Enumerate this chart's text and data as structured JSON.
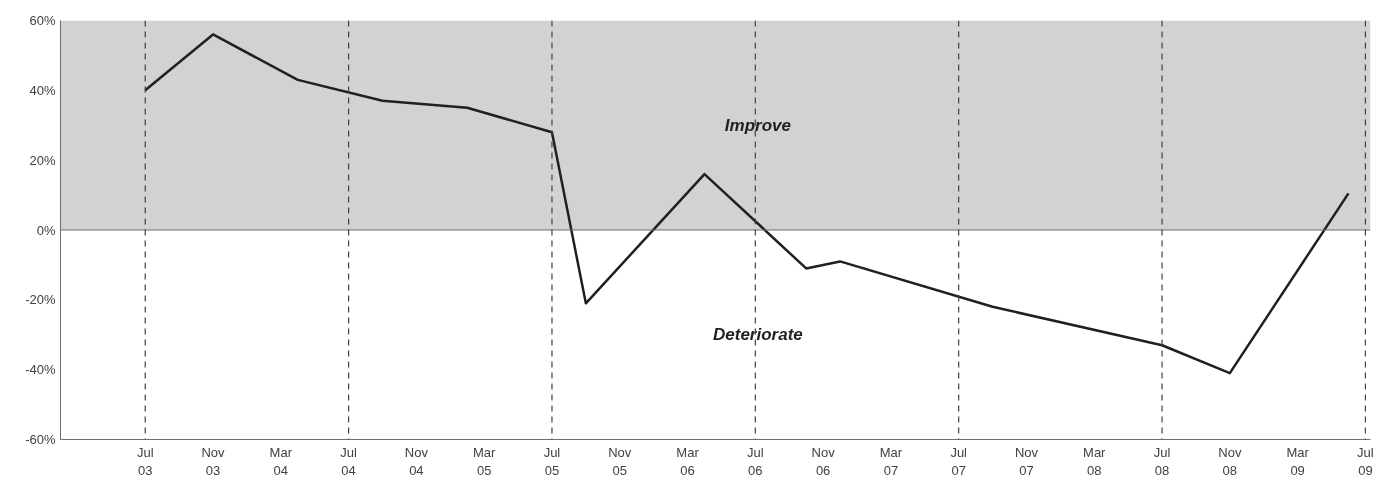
{
  "chart_data": {
    "type": "line",
    "x": [
      "2003-07",
      "2003-11",
      "2004-04",
      "2004-09",
      "2005-02",
      "2005-07",
      "2005-09",
      "2006-04",
      "2006-10",
      "2006-12",
      "2007-09",
      "2008-07",
      "2008-11",
      "2009-06"
    ],
    "series": [
      {
        "color": "#231f20",
        "values": [
          40,
          56,
          43,
          37,
          35,
          28,
          -21,
          16,
          -11,
          -9,
          -22,
          -33,
          -41,
          10.5
        ]
      }
    ],
    "xlim": [
      "2003-02",
      "2009-07-10"
    ],
    "xticks": [
      {
        "value": "2003-07",
        "label": "Jul\n03"
      },
      {
        "value": "2003-11",
        "label": "Nov\n03"
      },
      {
        "value": "2004-03",
        "label": "Mar\n04"
      },
      {
        "value": "2004-07",
        "label": "Jul\n04"
      },
      {
        "value": "2004-11",
        "label": "Nov\n04"
      },
      {
        "value": "2005-03",
        "label": "Mar\n05"
      },
      {
        "value": "2005-07",
        "label": "Jul\n05"
      },
      {
        "value": "2005-11",
        "label": "Nov\n05"
      },
      {
        "value": "2006-03",
        "label": "Mar\n06"
      },
      {
        "value": "2006-07",
        "label": "Jul\n06"
      },
      {
        "value": "2006-11",
        "label": "Nov\n06"
      },
      {
        "value": "2007-03",
        "label": "Mar\n07"
      },
      {
        "value": "2007-07",
        "label": "Jul\n07"
      },
      {
        "value": "2007-11",
        "label": "Nov\n07"
      },
      {
        "value": "2008-03",
        "label": "Mar\n08"
      },
      {
        "value": "2008-07",
        "label": "Jul\n08"
      },
      {
        "value": "2008-11",
        "label": "Nov\n08"
      },
      {
        "value": "2009-03",
        "label": "Mar\n09"
      },
      {
        "value": "2009-07",
        "label": "Jul\n09"
      }
    ],
    "ylim": [
      -60,
      60
    ],
    "yticks": [
      {
        "value": -60,
        "label": "-60%"
      },
      {
        "value": -40,
        "label": "-40%"
      },
      {
        "value": -20,
        "label": "-20%"
      },
      {
        "value": 0,
        "label": "0%"
      },
      {
        "value": 20,
        "label": "20%"
      },
      {
        "value": 40,
        "label": "40%"
      },
      {
        "value": 60,
        "label": "60%"
      }
    ],
    "bands": [
      {
        "axis": "y",
        "from": 0,
        "to": 60,
        "label": "Improve",
        "color": "#d1d2d4"
      }
    ],
    "annotations": [
      "Deteriorate"
    ],
    "ref_lines": [
      {
        "axis": "y",
        "value": 0,
        "color": "#6d6e71",
        "line_style": "solid"
      },
      {
        "axis": "x",
        "value": "2003-07",
        "color": "#414042",
        "line_style": "dashed"
      },
      {
        "axis": "x",
        "value": "2004-07",
        "color": "#414042",
        "line_style": "dashed"
      },
      {
        "axis": "x",
        "value": "2005-07",
        "color": "#414042",
        "line_style": "dashed"
      },
      {
        "axis": "x",
        "value": "2006-07",
        "color": "#414042",
        "line_style": "dashed"
      },
      {
        "axis": "x",
        "value": "2007-07",
        "color": "#414042",
        "line_style": "dashed"
      },
      {
        "axis": "x",
        "value": "2008-07",
        "color": "#414042",
        "line_style": "dashed"
      },
      {
        "axis": "x",
        "value": "2009-07",
        "color": "#414042",
        "line_style": "dashed"
      }
    ],
    "marker": "none",
    "line_style": "solid"
  }
}
